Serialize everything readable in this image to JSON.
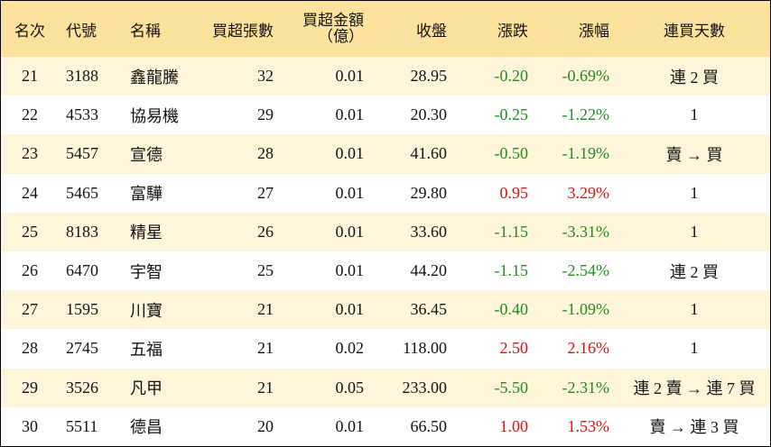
{
  "table": {
    "header": [
      "名次",
      "代號",
      "名稱",
      "買超張數",
      [
        "買超金額",
        "（億）"
      ],
      "收盤",
      "漲跌",
      "漲幅",
      "連買天數"
    ],
    "rows": [
      [
        "21",
        "3188",
        "鑫龍騰",
        "32",
        "0.01",
        "28.95",
        "-0.20",
        "-0.69%",
        "連 2 買"
      ],
      [
        "22",
        "4533",
        "協易機",
        "29",
        "0.01",
        "20.30",
        "-0.25",
        "-1.22%",
        "1"
      ],
      [
        "23",
        "5457",
        "宣德",
        "28",
        "0.01",
        "41.60",
        "-0.50",
        "-1.19%",
        "賣 → 買"
      ],
      [
        "24",
        "5465",
        "富驊",
        "27",
        "0.01",
        "29.80",
        "0.95",
        "3.29%",
        "1"
      ],
      [
        "25",
        "8183",
        "精星",
        "26",
        "0.01",
        "33.60",
        "-1.15",
        "-3.31%",
        "1"
      ],
      [
        "26",
        "6470",
        "宇智",
        "25",
        "0.01",
        "44.20",
        "-1.15",
        "-2.54%",
        "連 2 買"
      ],
      [
        "27",
        "1595",
        "川寶",
        "21",
        "0.01",
        "36.45",
        "-0.40",
        "-1.09%",
        "1"
      ],
      [
        "28",
        "2745",
        "五福",
        "21",
        "0.02",
        "118.00",
        "2.50",
        "2.16%",
        "1"
      ],
      [
        "29",
        "3526",
        "凡甲",
        "21",
        "0.05",
        "233.00",
        "-5.50",
        "-2.31%",
        "連 2 賣 → 連 7 買"
      ],
      [
        "30",
        "5511",
        "德昌",
        "20",
        "0.01",
        "66.50",
        "1.00",
        "1.53%",
        "賣 → 連 3 買"
      ]
    ]
  }
}
